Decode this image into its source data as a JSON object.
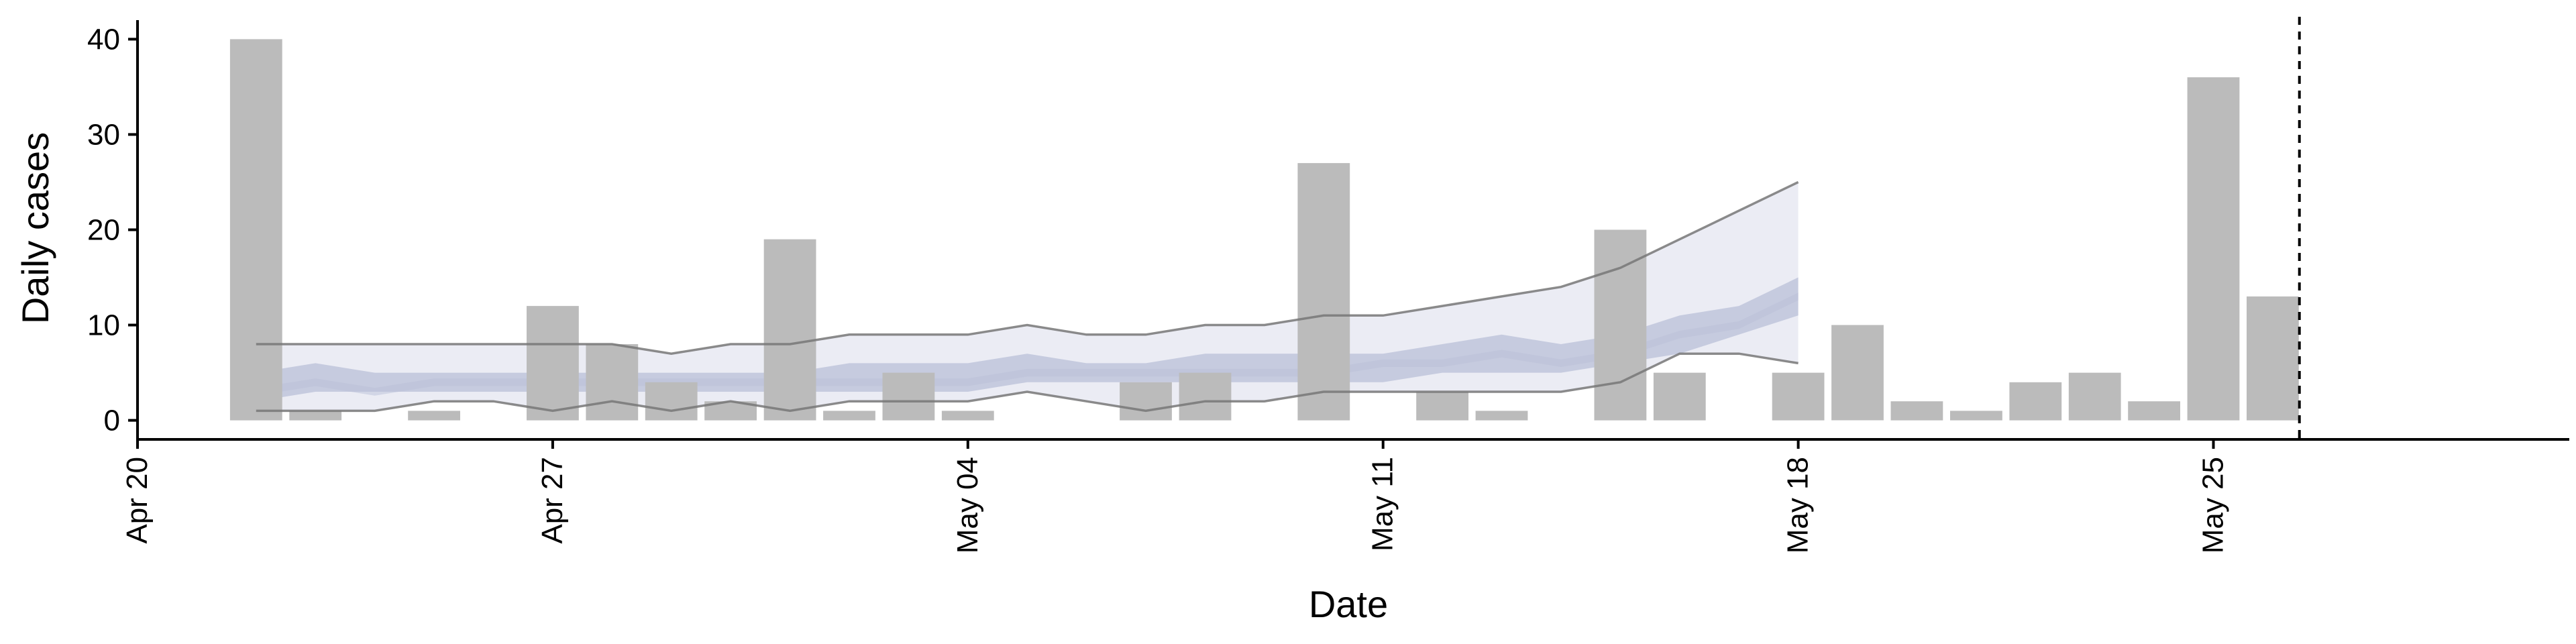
{
  "chart_data": {
    "type": "bar",
    "xlabel": "Date",
    "ylabel": "Daily cases",
    "x_ticks": [
      {
        "date": "2020-04-20",
        "label": "Apr 20"
      },
      {
        "date": "2020-04-27",
        "label": "Apr 27"
      },
      {
        "date": "2020-05-04",
        "label": "May 04"
      },
      {
        "date": "2020-05-11",
        "label": "May 11"
      },
      {
        "date": "2020-05-18",
        "label": "May 18"
      },
      {
        "date": "2020-05-25",
        "label": "May 25"
      }
    ],
    "y_ticks": [
      0,
      10,
      20,
      30,
      40
    ],
    "xlim": [
      "2020-04-20",
      "2020-05-31"
    ],
    "ylim": [
      -2,
      42
    ],
    "grid": false,
    "reference_line": {
      "date": "2020-05-26",
      "style": "dashed"
    },
    "bars": {
      "color": "#bbbbbb",
      "x": [
        "2020-04-22",
        "2020-04-23",
        "2020-04-24",
        "2020-04-25",
        "2020-04-26",
        "2020-04-27",
        "2020-04-28",
        "2020-04-29",
        "2020-04-30",
        "2020-05-01",
        "2020-05-02",
        "2020-05-03",
        "2020-05-04",
        "2020-05-05",
        "2020-05-06",
        "2020-05-07",
        "2020-05-08",
        "2020-05-09",
        "2020-05-10",
        "2020-05-11",
        "2020-05-12",
        "2020-05-13",
        "2020-05-14",
        "2020-05-15",
        "2020-05-16",
        "2020-05-17",
        "2020-05-18",
        "2020-05-19",
        "2020-05-20",
        "2020-05-21",
        "2020-05-22",
        "2020-05-23",
        "2020-05-24",
        "2020-05-25",
        "2020-05-26"
      ],
      "values": [
        40,
        1,
        0,
        1,
        0,
        12,
        8,
        4,
        2,
        19,
        1,
        5,
        1,
        0,
        0,
        4,
        5,
        0,
        27,
        0,
        3,
        1,
        0,
        20,
        5,
        0,
        5,
        10,
        2,
        1,
        4,
        5,
        2,
        36,
        13
      ]
    },
    "bands": {
      "x": [
        "2020-04-22",
        "2020-04-23",
        "2020-04-24",
        "2020-04-25",
        "2020-04-26",
        "2020-04-27",
        "2020-04-28",
        "2020-04-29",
        "2020-04-30",
        "2020-05-01",
        "2020-05-02",
        "2020-05-03",
        "2020-05-04",
        "2020-05-05",
        "2020-05-06",
        "2020-05-07",
        "2020-05-08",
        "2020-05-09",
        "2020-05-10",
        "2020-05-11",
        "2020-05-12",
        "2020-05-13",
        "2020-05-14",
        "2020-05-15",
        "2020-05-16",
        "2020-05-17",
        "2020-05-18"
      ],
      "outer_low": [
        1,
        1,
        1,
        2,
        2,
        1,
        2,
        1,
        2,
        1,
        2,
        2,
        2,
        3,
        2,
        1,
        2,
        2,
        3,
        3,
        3,
        3,
        3,
        4,
        7,
        7,
        6
      ],
      "outer_high": [
        8,
        8,
        8,
        8,
        8,
        8,
        8,
        7,
        8,
        8,
        9,
        9,
        9,
        10,
        9,
        9,
        10,
        10,
        11,
        11,
        12,
        13,
        14,
        16,
        19,
        22,
        25
      ],
      "inner_low": [
        2,
        3,
        3,
        3,
        3,
        3,
        3,
        3,
        3,
        3,
        3,
        3,
        3,
        4,
        4,
        4,
        4,
        4,
        4,
        4,
        5,
        5,
        5,
        6,
        7,
        9,
        11
      ],
      "inner_high": [
        5,
        6,
        5,
        5,
        5,
        5,
        5,
        5,
        5,
        5,
        6,
        6,
        6,
        7,
        6,
        6,
        7,
        7,
        7,
        7,
        8,
        9,
        8,
        9,
        11,
        12,
        15
      ],
      "median": [
        3,
        4,
        3,
        4,
        4,
        4,
        4,
        4,
        4,
        4,
        4,
        4,
        4,
        5,
        5,
        5,
        5,
        5,
        5,
        6,
        6,
        7,
        6,
        7,
        9,
        10,
        13
      ],
      "outer_color": "#dde0ec",
      "inner_color": "#b9c0d8",
      "bound_line_color": "#777777"
    },
    "colors": {
      "axis": "#000000",
      "reference": "#000000"
    }
  }
}
